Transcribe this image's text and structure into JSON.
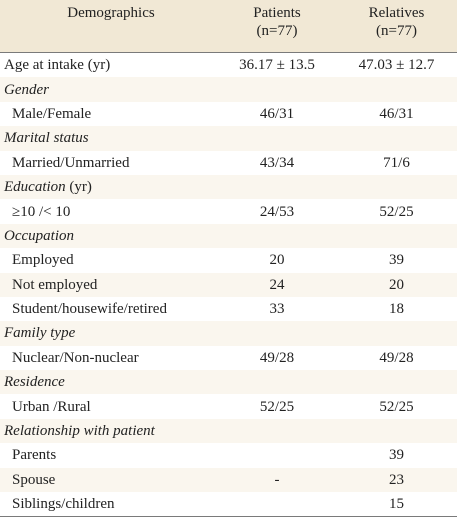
{
  "header": {
    "columns": [
      {
        "title": "Demographics"
      },
      {
        "title": "Patients",
        "n": "(n=77)"
      },
      {
        "title": "Relatives",
        "n": "(n=77)"
      }
    ]
  },
  "rows": [
    {
      "label": "Age at intake (yr)",
      "cells": [
        "36.17 ± 13.5",
        "47.03 ± 12.7"
      ]
    },
    {
      "section": "Gender"
    },
    {
      "label": "Male/Female",
      "cells": [
        "46/31",
        "46/31"
      ]
    },
    {
      "section": "Marital status"
    },
    {
      "label": "Married/Unmarried",
      "cells": [
        "43/34",
        "71/6"
      ]
    },
    {
      "section": "Education",
      "note": " (yr)"
    },
    {
      "label": "≥10 /< 10",
      "cells": [
        "24/53",
        "52/25"
      ]
    },
    {
      "section": "Occupation"
    },
    {
      "label": "Employed",
      "cells": [
        "20",
        "39"
      ]
    },
    {
      "label": "Not employed",
      "cells": [
        "24",
        "20"
      ]
    },
    {
      "label": "Student/housewife/retired",
      "cells": [
        "33",
        "18"
      ]
    },
    {
      "section": "Family type"
    },
    {
      "label": "Nuclear/Non-nuclear",
      "cells": [
        "49/28",
        "49/28"
      ]
    },
    {
      "section": "Residence"
    },
    {
      "label": "Urban /Rural",
      "cells": [
        "52/25",
        "52/25"
      ]
    },
    {
      "section": "Relationship with patient"
    },
    {
      "label": "Parents",
      "cells": [
        null,
        "39"
      ]
    },
    {
      "label": "Spouse",
      "cells": [
        "-",
        "23"
      ]
    },
    {
      "label": "Siblings/children",
      "cells": [
        null,
        "15"
      ]
    }
  ]
}
